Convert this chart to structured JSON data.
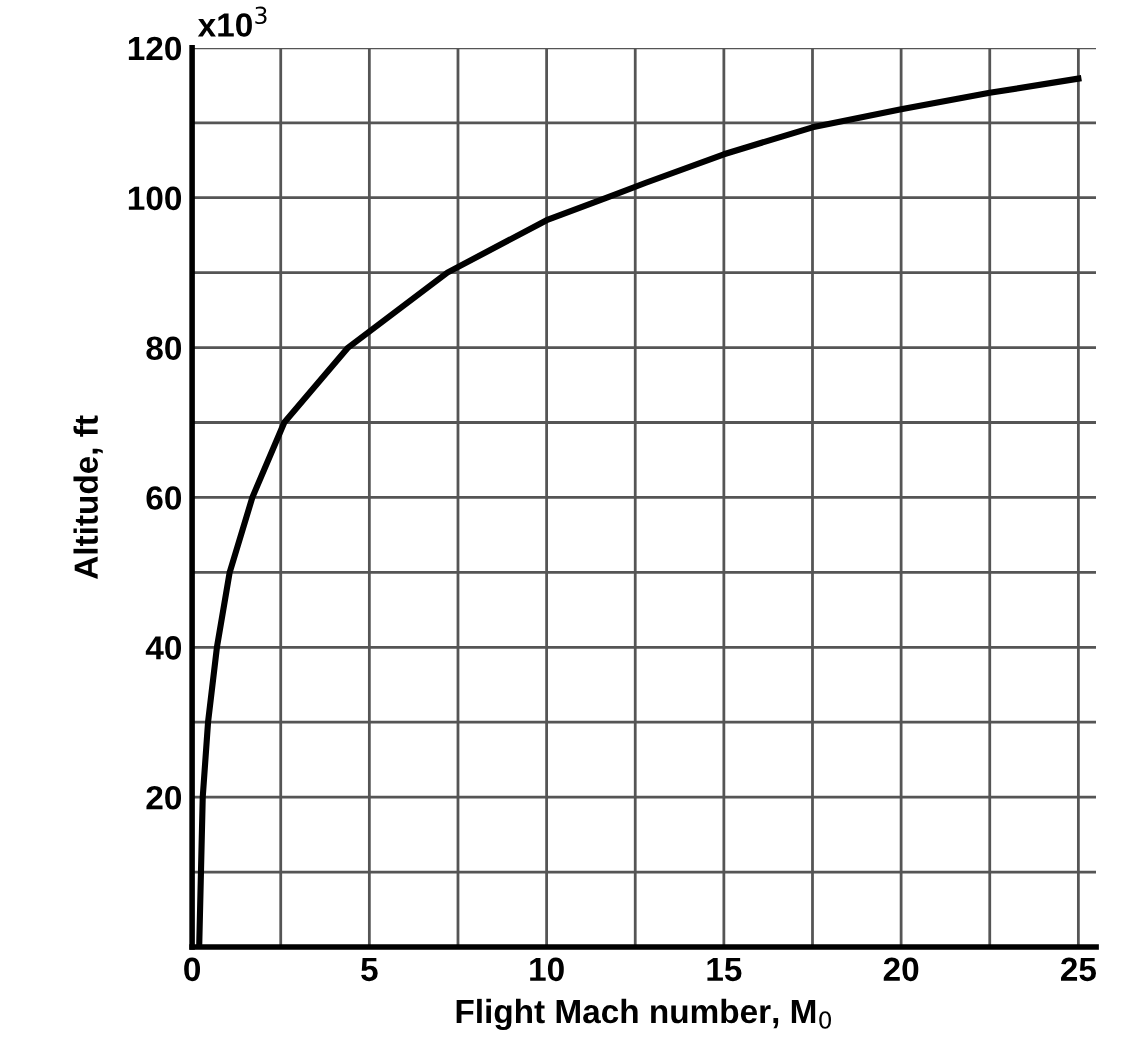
{
  "chart_data": {
    "type": "line",
    "xlabel": "Flight Mach number, M$_{0}$",
    "ylabel": "Altitude, ft",
    "annotations": [
      "x10$^{3}$"
    ],
    "x": [
      0.2,
      0.25,
      0.3,
      0.45,
      0.7,
      1.06,
      1.7,
      2.6,
      4.4,
      7.2,
      10,
      11.7,
      12.8,
      15,
      17.5,
      20,
      22.5,
      25
    ],
    "series": [
      {
        "color": "#000000",
        "values": [
          0,
          10,
          20,
          30,
          40,
          50,
          60,
          70,
          80,
          90,
          97,
          100,
          102,
          105.8,
          109.4,
          111.8,
          114,
          115.9
        ]
      }
    ],
    "xlim": [
      0,
      25.5
    ],
    "ylim": [
      0,
      120
    ],
    "xticks": [
      0,
      {
        "value": 2.5,
        "label": null
      },
      5,
      {
        "value": 7.5,
        "label": null
      },
      10,
      {
        "value": 12.5,
        "label": null
      },
      15,
      {
        "value": 17.5,
        "label": null
      },
      20,
      {
        "value": 22.5,
        "label": null
      },
      25
    ],
    "yticks": [
      {
        "value": 0,
        "label": null
      },
      {
        "value": 10,
        "label": null
      },
      20,
      {
        "value": 30,
        "label": null
      },
      40,
      {
        "value": 50,
        "label": null
      },
      60,
      {
        "value": 70,
        "label": null
      },
      80,
      {
        "value": 90,
        "label": null
      },
      100,
      {
        "value": 110,
        "label": null
      },
      120
    ],
    "grid": true,
    "marker": "none",
    "line_style": "solid",
    "legend": false
  }
}
